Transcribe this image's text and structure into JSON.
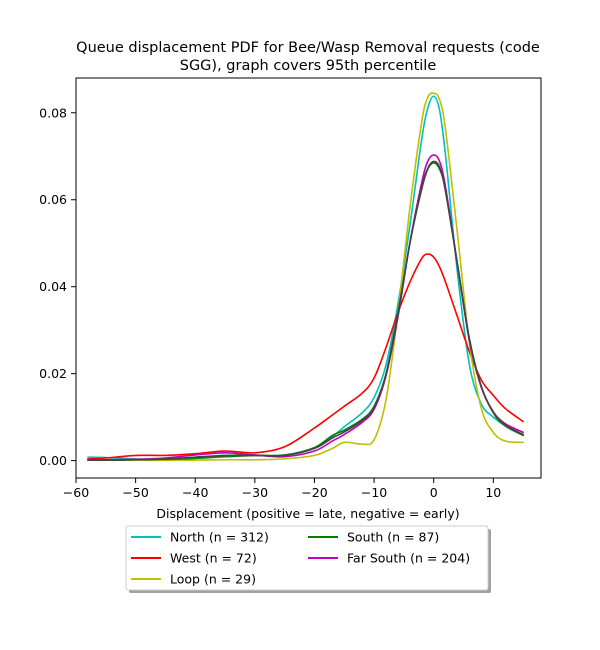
{
  "chart_data": {
    "type": "line",
    "title": [
      "Queue displacement PDF for Bee/Wasp Removal  requests (code",
      "SGG), graph covers 95th percentile"
    ],
    "xlabel": "Displacement (positive = late, negative = early)",
    "ylabel": "",
    "xlim": [
      -60,
      18
    ],
    "ylim": [
      -0.004,
      0.088
    ],
    "xticks": [
      -60,
      -50,
      -40,
      -30,
      -20,
      -10,
      0,
      10
    ],
    "xtick_labels": [
      "−60",
      "−50",
      "−40",
      "−30",
      "−20",
      "−10",
      "0",
      "10"
    ],
    "yticks": [
      0.0,
      0.02,
      0.04,
      0.06,
      0.08
    ],
    "ytick_labels": [
      "0.00",
      "0.02",
      "0.04",
      "0.06",
      "0.08"
    ],
    "grid": false,
    "legend_position": "below-center",
    "x": [
      -58,
      -55,
      -50,
      -45,
      -40,
      -35,
      -30,
      -25,
      -20,
      -17,
      -15,
      -12,
      -10,
      -8,
      -6,
      -4,
      -2,
      -1,
      0,
      1,
      2,
      4,
      6,
      8,
      10,
      12,
      15
    ],
    "series": [
      {
        "name": "North (n = 312)",
        "color": "#00bfbf",
        "values": [
          0.0008,
          0.0007,
          0.0004,
          0.0003,
          0.0006,
          0.0012,
          0.0012,
          0.0012,
          0.0028,
          0.0055,
          0.0078,
          0.011,
          0.0145,
          0.022,
          0.036,
          0.054,
          0.074,
          0.081,
          0.0838,
          0.0805,
          0.07,
          0.043,
          0.022,
          0.013,
          0.01,
          0.008,
          0.006
        ]
      },
      {
        "name": "West (n = 72)",
        "color": "#ff0000",
        "values": [
          0.0004,
          0.0006,
          0.0012,
          0.0012,
          0.0016,
          0.0022,
          0.0018,
          0.0032,
          0.0075,
          0.0105,
          0.0125,
          0.0155,
          0.019,
          0.026,
          0.034,
          0.041,
          0.0465,
          0.0475,
          0.0468,
          0.0445,
          0.041,
          0.033,
          0.025,
          0.0185,
          0.015,
          0.012,
          0.009
        ]
      },
      {
        "name": "Loop (n = 29)",
        "color": "#bfbf00",
        "values": [
          0.0001,
          0.0001,
          0.0001,
          0.0001,
          0.0001,
          0.0002,
          0.0002,
          0.0004,
          0.0012,
          0.0028,
          0.0042,
          0.0038,
          0.0048,
          0.014,
          0.034,
          0.058,
          0.078,
          0.0835,
          0.0845,
          0.083,
          0.076,
          0.052,
          0.027,
          0.012,
          0.0065,
          0.0045,
          0.0042
        ]
      },
      {
        "name": "South (n = 87)",
        "color": "#008000",
        "values": [
          0.0001,
          0.0001,
          0.0002,
          0.0003,
          0.0005,
          0.0009,
          0.0012,
          0.0013,
          0.003,
          0.0058,
          0.007,
          0.0095,
          0.0125,
          0.02,
          0.034,
          0.05,
          0.0625,
          0.067,
          0.0685,
          0.067,
          0.062,
          0.045,
          0.028,
          0.017,
          0.011,
          0.008,
          0.0058
        ]
      },
      {
        "name": "Far South (n = 204)",
        "color": "#bf00bf",
        "values": [
          0.0002,
          0.0002,
          0.0003,
          0.0006,
          0.0013,
          0.0018,
          0.0013,
          0.0009,
          0.0022,
          0.0045,
          0.006,
          0.0088,
          0.0118,
          0.0195,
          0.033,
          0.05,
          0.064,
          0.0688,
          0.0703,
          0.0688,
          0.0628,
          0.045,
          0.0275,
          0.0168,
          0.0112,
          0.0085,
          0.0065
        ]
      },
      {
        "name": "",
        "color": "#444444",
        "values": [
          0.0001,
          0.0001,
          0.0002,
          0.0004,
          0.0008,
          0.0012,
          0.0012,
          0.0012,
          0.0028,
          0.0052,
          0.0066,
          0.0092,
          0.0122,
          0.0198,
          0.0335,
          0.05,
          0.0628,
          0.0672,
          0.0688,
          0.0675,
          0.0618,
          0.045,
          0.0278,
          0.017,
          0.0112,
          0.0082,
          0.006
        ]
      }
    ],
    "legend": [
      {
        "label": "North (n = 312)",
        "color": "#00bfbf"
      },
      {
        "label": "South (n = 87)",
        "color": "#008000"
      },
      {
        "label": "West (n = 72)",
        "color": "#ff0000"
      },
      {
        "label": "Far South (n = 204)",
        "color": "#bf00bf"
      },
      {
        "label": "Loop (n = 29)",
        "color": "#bfbf00"
      }
    ]
  }
}
